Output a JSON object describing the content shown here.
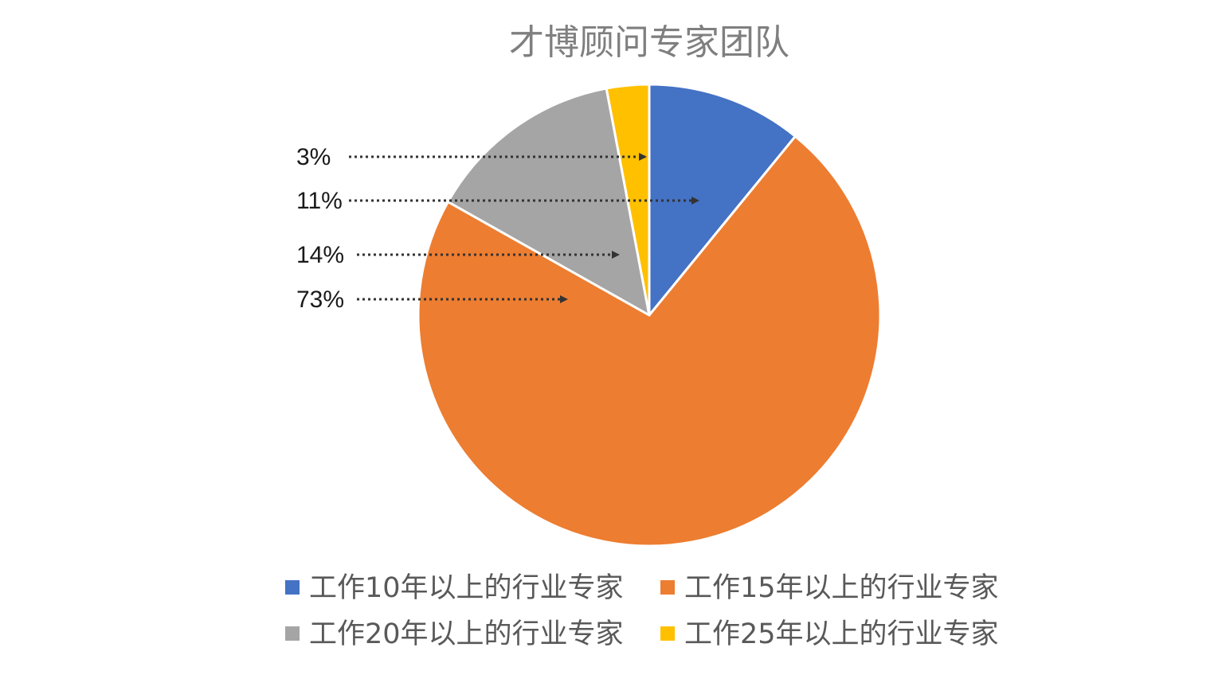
{
  "chart_data": {
    "type": "pie",
    "title": "才博顾问专家团队",
    "slices": [
      {
        "name": "工作10年以上的行业专家",
        "value": 11,
        "label": "11%",
        "color": "#4472C4"
      },
      {
        "name": "工作15年以上的行业专家",
        "value": 73,
        "label": "73%",
        "color": "#ED7D31"
      },
      {
        "name": "工作20年以上的行业专家",
        "value": 14,
        "label": "14%",
        "color": "#A5A5A5"
      },
      {
        "name": "工作25年以上的行业专家",
        "value": 3,
        "label": "3%",
        "color": "#FFC000"
      }
    ],
    "label_order": [
      "3%",
      "11%",
      "14%",
      "73%"
    ],
    "legend_position": "bottom",
    "start_angle": "12 o'clock",
    "direction": "clockwise",
    "label_style": "left column with dotted arrows pointing into slices"
  }
}
